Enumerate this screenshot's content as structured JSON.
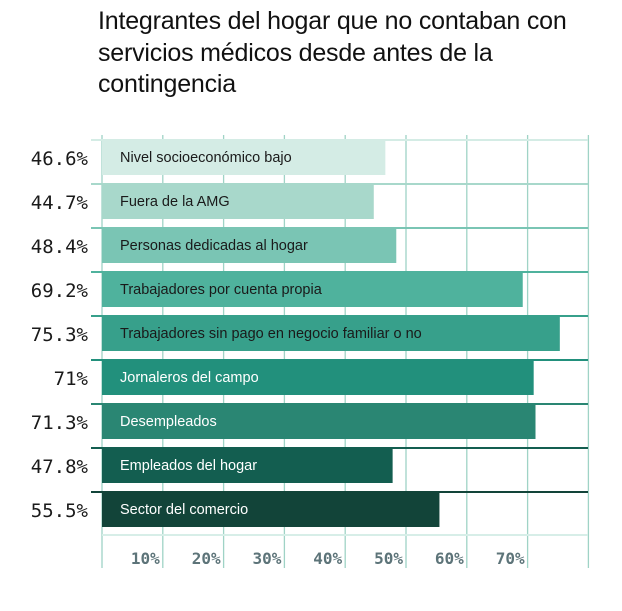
{
  "chart_data": {
    "type": "bar",
    "orientation": "horizontal",
    "title": "Integrantes del hogar que no contaban con servicios médicos desde antes de la contingencia",
    "xlabel": "",
    "ylabel": "",
    "xlim": [
      0,
      80
    ],
    "grid": true,
    "legend": "none",
    "x_ticks": [
      10,
      20,
      30,
      40,
      50,
      60,
      70
    ],
    "x_tick_labels": [
      "10%",
      "20%",
      "30%",
      "40%",
      "50%",
      "60%",
      "70%"
    ],
    "categories": [
      "Nivel socioeconómico bajo",
      "Fuera de la AMG",
      "Personas dedicadas al hogar",
      "Trabajadores por cuenta propia",
      "Trabajadores sin pago en negocio familiar o no",
      "Jornaleros del campo",
      "Desempleados",
      "Empleados del hogar",
      "Sector del comercio"
    ],
    "values": [
      46.6,
      44.7,
      48.4,
      69.2,
      75.3,
      71,
      71.3,
      47.8,
      55.5
    ],
    "value_labels": [
      "46.6%",
      "44.7%",
      "48.4%",
      "69.2%",
      "75.3%",
      "71%",
      "71.3%",
      "47.8%",
      "55.5%"
    ],
    "colors": [
      "#d4ece5",
      "#a8d8cb",
      "#7ac5b4",
      "#4fb29d",
      "#37a08b",
      "#22907c",
      "#2a8673",
      "#135e50",
      "#124439"
    ],
    "label_colors": [
      "#1a1a1a",
      "#1a1a1a",
      "#1a1a1a",
      "#1a1a1a",
      "#1a1a1a",
      "#ffffff",
      "#ffffff",
      "#ffffff",
      "#ffffff"
    ],
    "grid_color": "#9fd3c6"
  }
}
